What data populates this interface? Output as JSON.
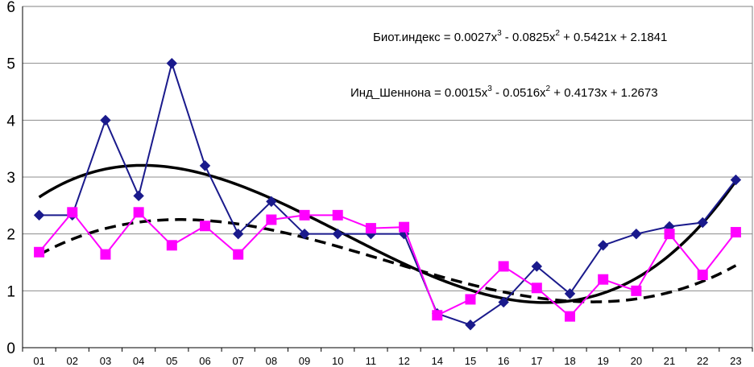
{
  "chart_data": {
    "type": "line",
    "categories": [
      "01",
      "02",
      "03",
      "04",
      "05",
      "06",
      "07",
      "08",
      "09",
      "10",
      "11",
      "12",
      "14",
      "15",
      "16",
      "17",
      "18",
      "19",
      "20",
      "21",
      "22",
      "23"
    ],
    "ylim": [
      0,
      6
    ],
    "yticks": [
      "0",
      "1",
      "2",
      "3",
      "4",
      "5",
      "6"
    ],
    "grid": "horizontal",
    "series": [
      {
        "marker": "diamond",
        "color": "#1a1a8c",
        "values": [
          2.33,
          2.33,
          4.0,
          2.67,
          5.0,
          3.2,
          2.0,
          2.57,
          2.0,
          2.0,
          2.0,
          2.0,
          0.6,
          0.4,
          0.8,
          1.43,
          0.95,
          1.8,
          2.0,
          2.13,
          2.2,
          2.95
        ]
      },
      {
        "marker": "square",
        "color": "#ff00ff",
        "values": [
          1.68,
          2.38,
          1.64,
          2.38,
          1.8,
          2.14,
          1.64,
          2.25,
          2.33,
          2.33,
          2.1,
          2.12,
          0.57,
          0.85,
          1.43,
          1.05,
          0.55,
          1.2,
          1.0,
          2.0,
          1.28,
          2.03
        ]
      }
    ],
    "trendlines": [
      {
        "style": "solid",
        "color": "#000000",
        "coefficients": [
          0.0027,
          -0.0825,
          0.5421,
          2.1841
        ]
      },
      {
        "style": "dashed",
        "color": "#000000",
        "coefficients": [
          0.0015,
          -0.0516,
          0.4173,
          1.2673
        ]
      }
    ],
    "equations": [
      {
        "lhs": "Биот.индекс = 0.0027x",
        "e1": "3",
        "m1": " - 0.0825x",
        "e2": "2",
        "rest": " + 0.5421x + 2.1841"
      },
      {
        "lhs": "Инд_Шеннона = 0.0015x",
        "e1": "3",
        "m1": " - 0.0516x",
        "e2": "2",
        "rest": " + 0.4173x + 1.2673"
      }
    ]
  }
}
